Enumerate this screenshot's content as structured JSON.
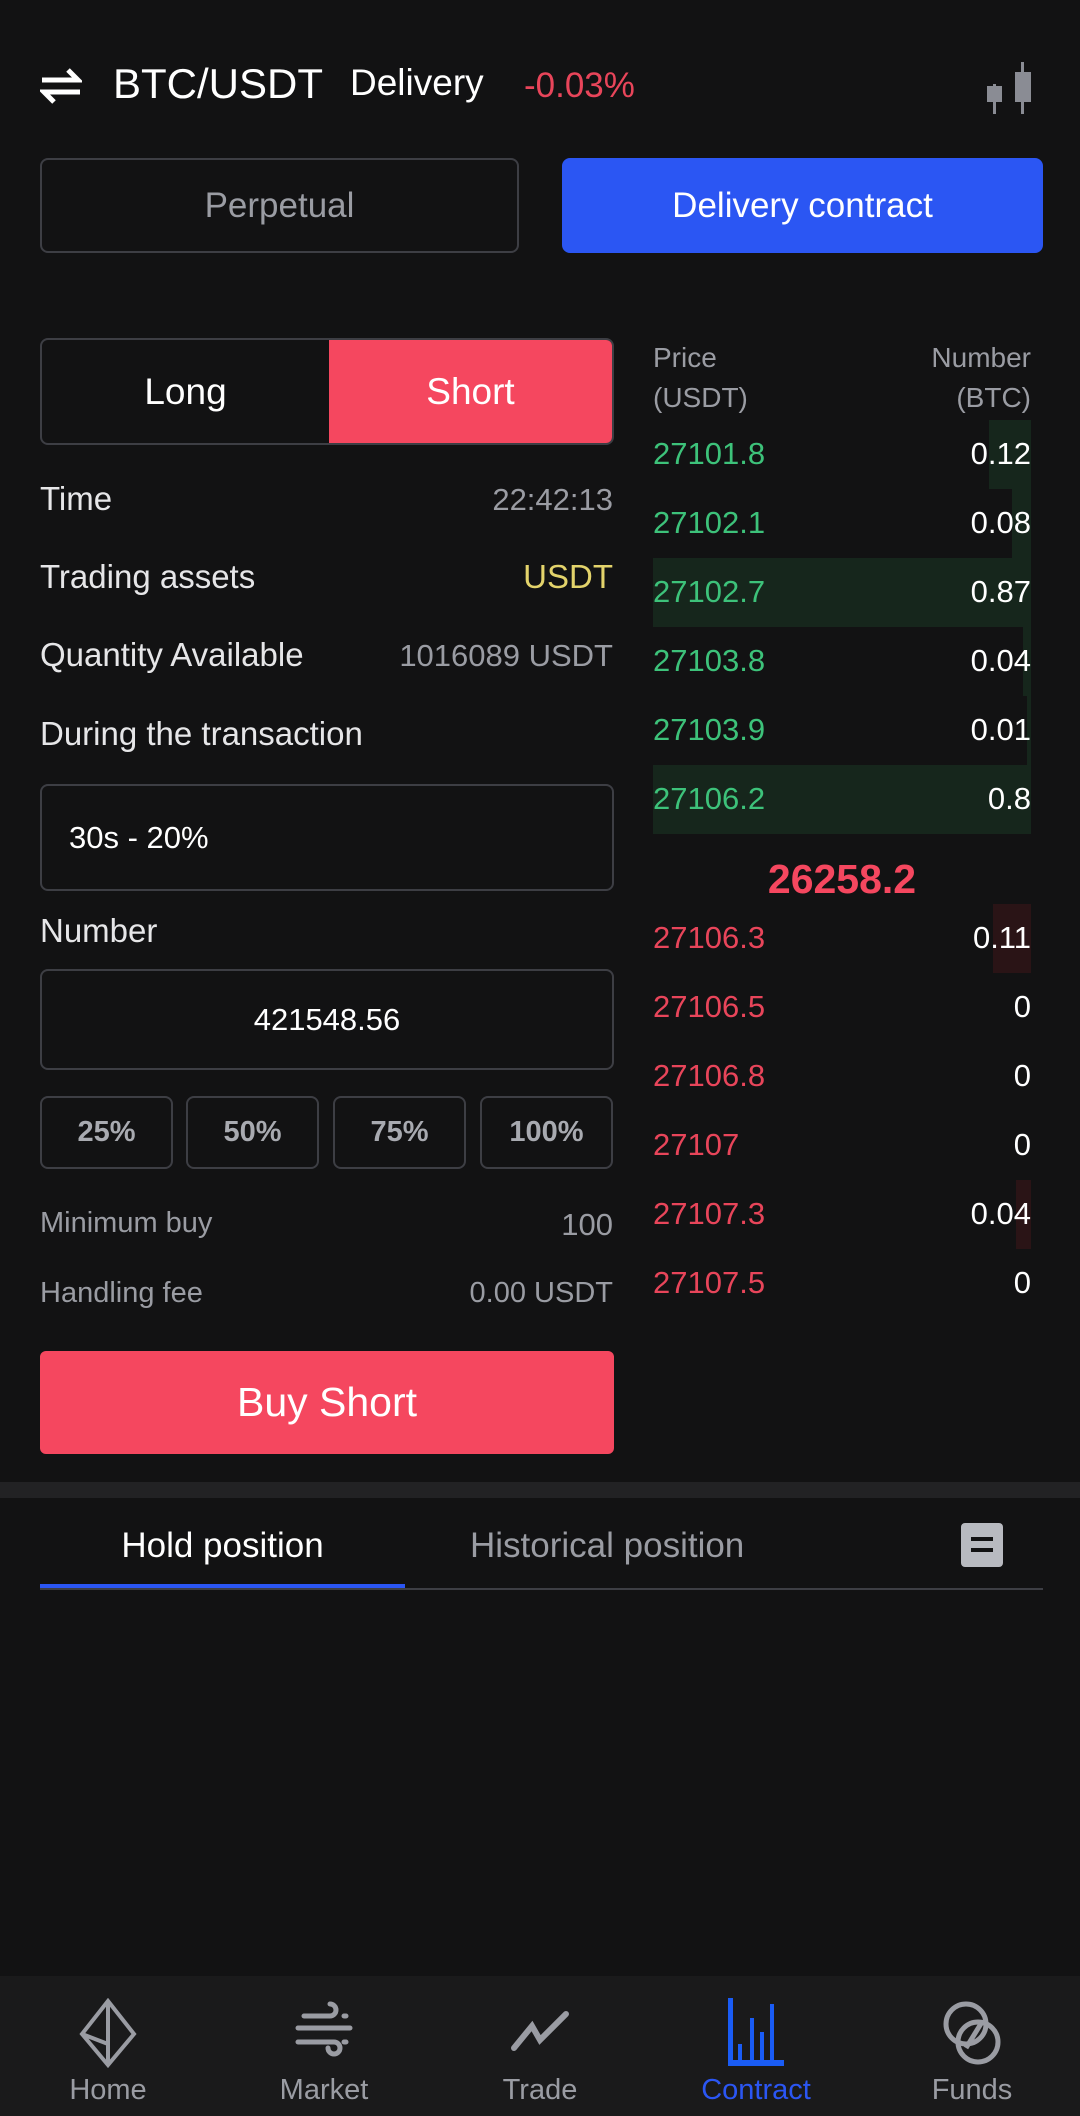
{
  "header": {
    "pair": "BTC/USDT",
    "type": "Delivery",
    "change": "-0.03%",
    "swap_icon": "swap-arrows-icon",
    "chart_icon": "candlestick-icon"
  },
  "contract_tabs": [
    {
      "label": "Perpetual",
      "active": false
    },
    {
      "label": "Delivery contract",
      "active": true
    }
  ],
  "side": {
    "long": "Long",
    "short": "Short",
    "selected": "Short"
  },
  "info": {
    "time_label": "Time",
    "time": "22:42:13",
    "assets_label": "Trading assets",
    "assets": "USDT",
    "qty_label": "Quantity Available",
    "qty": "1016089 USDT",
    "during_label": "During the transaction",
    "during_value": "30s - 20%",
    "number_label": "Number",
    "number_value": "421548.56",
    "percents": [
      "25%",
      "50%",
      "75%",
      "100%"
    ],
    "min_label": "Minimum buy",
    "min": "100",
    "fee_label": "Handling fee",
    "fee": "0.00 USDT",
    "buy_button": "Buy Short"
  },
  "orderbook": {
    "price_header": "Price",
    "price_unit": "(USDT)",
    "number_header": "Number",
    "number_unit": "(BTC)",
    "asks": [
      {
        "price": "27101.8",
        "number": "0.12",
        "depth": 0.11
      },
      {
        "price": "27102.1",
        "number": "0.08",
        "depth": 0.05
      },
      {
        "price": "27102.7",
        "number": "0.87",
        "depth": 1.0
      },
      {
        "price": "27103.8",
        "number": "0.04",
        "depth": 0.02
      },
      {
        "price": "27103.9",
        "number": "0.01",
        "depth": 0.01
      },
      {
        "price": "27106.2",
        "number": "0.8",
        "depth": 1.0
      }
    ],
    "last_price": "26258.2",
    "bids": [
      {
        "price": "27106.3",
        "number": "0.11",
        "depth": 0.1
      },
      {
        "price": "27106.5",
        "number": "0",
        "depth": 0
      },
      {
        "price": "27106.8",
        "number": "0",
        "depth": 0
      },
      {
        "price": "27107",
        "number": "0",
        "depth": 0
      },
      {
        "price": "27107.3",
        "number": "0.04",
        "depth": 0.04
      },
      {
        "price": "27107.5",
        "number": "0",
        "depth": 0
      }
    ]
  },
  "position_tabs": [
    {
      "label": "Hold position",
      "active": true
    },
    {
      "label": "Historical position",
      "active": false
    }
  ],
  "nav": [
    {
      "label": "Home",
      "icon": "ethereum-icon"
    },
    {
      "label": "Market",
      "icon": "wind-icon"
    },
    {
      "label": "Trade",
      "icon": "trend-line-icon"
    },
    {
      "label": "Contract",
      "icon": "bar-chart-icon",
      "active": true
    },
    {
      "label": "Funds",
      "icon": "coins-icon"
    }
  ],
  "colors": {
    "accent": "#2b56f3",
    "short": "#f5475f",
    "green": "#3dc27a",
    "red": "#e8455a",
    "yellow": "#e3d36b",
    "bg": "#121213"
  }
}
